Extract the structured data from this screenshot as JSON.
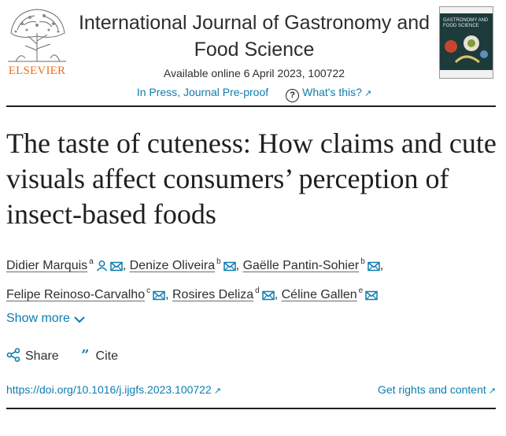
{
  "publisher": {
    "logo_word": "ELSEVIER"
  },
  "journal": {
    "title": "International Journal of Gastronomy and Food Science",
    "availability": "Available online 6 April 2023, 100722",
    "status": "In Press, Journal Pre-proof",
    "help_link": "What's this?",
    "cover_text": "GASTRONOMY AND FOOD SCIENCE"
  },
  "article": {
    "title": "The taste of cuteness: How claims and cute visuals affect consumers’ perception of insect-based foods"
  },
  "authors": [
    {
      "name": "Didier Marquis",
      "aff": "a",
      "person_icon": true,
      "sep": ","
    },
    {
      "name": "Denize Oliveira",
      "aff": "b",
      "person_icon": false,
      "sep": ","
    },
    {
      "name": "Gaëlle Pantin-Sohier",
      "aff": "b",
      "person_icon": false,
      "sep": ","
    },
    {
      "name": "Felipe Reinoso-Carvalho",
      "aff": "c",
      "person_icon": false,
      "sep": ","
    },
    {
      "name": "Rosires Deliza",
      "aff": "d",
      "person_icon": false,
      "sep": ","
    },
    {
      "name": "Céline Gallen",
      "aff": "e",
      "person_icon": false,
      "sep": ""
    }
  ],
  "show_more": "Show more",
  "actions": {
    "share": "Share",
    "cite": "Cite"
  },
  "links": {
    "doi": "https://doi.org/10.1016/j.ijgfs.2023.100722",
    "rights": "Get rights and content"
  },
  "colors": {
    "link": "#0c7db1",
    "elsevier_orange": "#e9711c",
    "text": "#1f1f1f"
  }
}
